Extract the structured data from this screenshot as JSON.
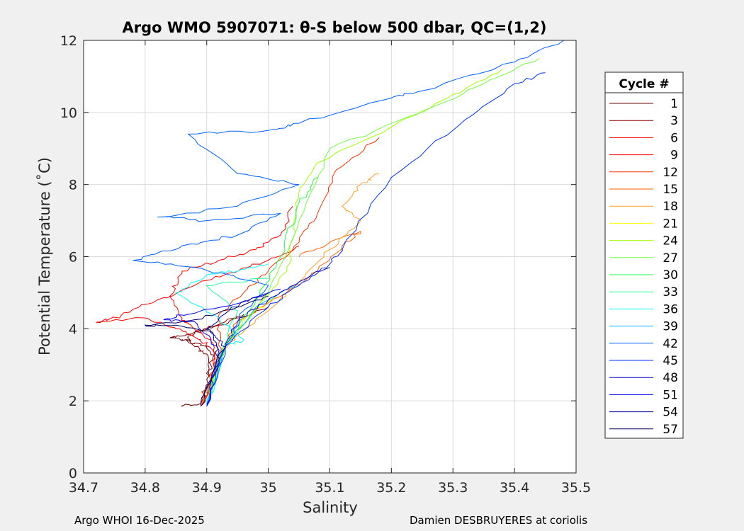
{
  "chart_data": {
    "type": "line",
    "title": "Argo WMO 5907071: θ-S below 500 dbar,  QC=(1,2)",
    "xlabel": "Salinity",
    "ylabel": "Potential Temperature (˚C)",
    "xlim": [
      34.7,
      35.5
    ],
    "ylim": [
      0,
      12
    ],
    "xticks": [
      34.7,
      34.8,
      34.9,
      35,
      35.1,
      35.2,
      35.3,
      35.4,
      35.5
    ],
    "xtick_labels": [
      "34.7",
      "34.8",
      "34.9",
      "35",
      "35.1",
      "35.2",
      "35.3",
      "35.4",
      "35.5"
    ],
    "yticks": [
      0,
      2,
      4,
      6,
      8,
      10,
      12
    ],
    "ytick_labels": [
      "0",
      "2",
      "4",
      "6",
      "8",
      "10",
      "12"
    ],
    "grid": true,
    "legend": {
      "title": "Cycle #",
      "placement": "right-outside"
    },
    "series": [
      {
        "name": "1",
        "color": "#6b0000",
        "points": [
          [
            34.86,
            1.88
          ],
          [
            34.89,
            1.9
          ],
          [
            34.9,
            2.6
          ],
          [
            34.91,
            3.2
          ],
          [
            34.9,
            3.5
          ],
          [
            34.88,
            3.6
          ],
          [
            34.86,
            3.7
          ],
          [
            34.84,
            3.75
          ],
          [
            34.88,
            3.9
          ],
          [
            34.92,
            4.1
          ],
          [
            34.96,
            4.4
          ]
        ]
      },
      {
        "name": "3",
        "color": "#8b0000",
        "points": [
          [
            34.89,
            1.85
          ],
          [
            34.905,
            2.5
          ],
          [
            34.9,
            3.3
          ],
          [
            34.88,
            3.5
          ],
          [
            34.87,
            3.8
          ],
          [
            34.9,
            4.0
          ],
          [
            34.95,
            4.3
          ],
          [
            35.0,
            4.6
          ]
        ]
      },
      {
        "name": "6",
        "color": "#ff0000",
        "points": [
          [
            34.89,
            1.85
          ],
          [
            34.91,
            2.6
          ],
          [
            34.91,
            3.4
          ],
          [
            34.89,
            3.7
          ],
          [
            34.85,
            4.0
          ],
          [
            34.8,
            4.3
          ],
          [
            34.72,
            4.18
          ],
          [
            34.76,
            4.35
          ],
          [
            34.82,
            4.8
          ],
          [
            34.88,
            5.2
          ],
          [
            34.94,
            5.55
          ],
          [
            35.0,
            5.9
          ],
          [
            35.05,
            6.3
          ]
        ]
      },
      {
        "name": "9",
        "color": "#ff0000",
        "points": [
          [
            34.89,
            1.85
          ],
          [
            34.915,
            2.8
          ],
          [
            34.91,
            3.6
          ],
          [
            34.88,
            4.0
          ],
          [
            34.86,
            4.3
          ],
          [
            34.84,
            4.9
          ],
          [
            34.86,
            5.6
          ],
          [
            34.92,
            5.9
          ],
          [
            34.98,
            6.2
          ],
          [
            35.02,
            6.6
          ],
          [
            35.04,
            7.4
          ]
        ]
      },
      {
        "name": "12",
        "color": "#ff3000",
        "points": [
          [
            34.89,
            1.85
          ],
          [
            34.92,
            3.3
          ],
          [
            34.92,
            4.4
          ],
          [
            34.96,
            5.0
          ],
          [
            35.0,
            5.6
          ],
          [
            35.05,
            6.4
          ],
          [
            35.08,
            7.2
          ],
          [
            35.11,
            8.4
          ],
          [
            35.18,
            9.3
          ]
        ]
      },
      {
        "name": "15",
        "color": "#ff6000",
        "points": [
          [
            34.89,
            1.85
          ],
          [
            34.92,
            3.2
          ],
          [
            34.95,
            4.2
          ],
          [
            35.02,
            4.9
          ],
          [
            35.08,
            5.6
          ],
          [
            35.12,
            6.3
          ],
          [
            35.15,
            6.7
          ],
          [
            35.1,
            6.4
          ],
          [
            35.05,
            6.0
          ]
        ]
      },
      {
        "name": "18",
        "color": "#ffa020",
        "points": [
          [
            34.89,
            1.85
          ],
          [
            34.92,
            3.3
          ],
          [
            34.95,
            3.8
          ],
          [
            35.0,
            4.5
          ],
          [
            35.05,
            5.3
          ],
          [
            35.1,
            6.2
          ],
          [
            35.15,
            7.0
          ],
          [
            35.12,
            7.4
          ],
          [
            35.15,
            8.0
          ],
          [
            35.18,
            8.3
          ]
        ]
      },
      {
        "name": "21",
        "color": "#ffff00",
        "points": [
          [
            34.9,
            1.9
          ],
          [
            34.93,
            3.5
          ],
          [
            34.97,
            4.4
          ],
          [
            35.02,
            5.0
          ]
        ]
      },
      {
        "name": "24",
        "color": "#a0ff00",
        "points": [
          [
            34.9,
            1.9
          ],
          [
            34.93,
            3.6
          ],
          [
            34.98,
            4.6
          ],
          [
            35.03,
            5.6
          ],
          [
            35.04,
            6.5
          ],
          [
            35.05,
            7.8
          ],
          [
            35.08,
            8.6
          ],
          [
            35.2,
            9.6
          ],
          [
            35.3,
            10.5
          ],
          [
            35.38,
            11.2
          ]
        ]
      },
      {
        "name": "27",
        "color": "#70ff40",
        "points": [
          [
            34.9,
            1.9
          ],
          [
            34.93,
            3.5
          ],
          [
            35.0,
            5.0
          ],
          [
            35.05,
            7.0
          ],
          [
            35.1,
            9.0
          ],
          [
            35.25,
            10.0
          ],
          [
            35.35,
            10.8
          ],
          [
            35.44,
            11.5
          ]
        ]
      },
      {
        "name": "30",
        "color": "#20ff40",
        "points": [
          [
            34.9,
            1.9
          ],
          [
            34.93,
            3.5
          ],
          [
            34.98,
            4.8
          ],
          [
            35.02,
            6.0
          ],
          [
            35.05,
            7.5
          ],
          [
            35.08,
            8.2
          ]
        ]
      },
      {
        "name": "33",
        "color": "#20ffa0",
        "points": [
          [
            34.9,
            1.9
          ],
          [
            34.93,
            3.6
          ],
          [
            34.95,
            4.5
          ],
          [
            34.9,
            5.2
          ],
          [
            35.0,
            5.4
          ]
        ]
      },
      {
        "name": "36",
        "color": "#00ffff",
        "points": [
          [
            34.9,
            1.9
          ],
          [
            34.93,
            3.5
          ],
          [
            34.96,
            3.7
          ],
          [
            34.92,
            4.3
          ],
          [
            34.85,
            5.0
          ],
          [
            34.9,
            5.5
          ],
          [
            34.95,
            5.6
          ],
          [
            35.0,
            5.8
          ]
        ]
      },
      {
        "name": "39",
        "color": "#00b0ff",
        "points": [
          [
            34.9,
            1.9
          ],
          [
            34.93,
            3.5
          ],
          [
            34.98,
            4.6
          ],
          [
            35.05,
            5.3
          ]
        ]
      },
      {
        "name": "42",
        "color": "#0060ff",
        "points": [
          [
            34.9,
            1.9
          ],
          [
            34.93,
            3.5
          ],
          [
            34.96,
            4.5
          ],
          [
            35.0,
            5.2
          ],
          [
            34.88,
            5.7
          ],
          [
            34.78,
            5.9
          ],
          [
            34.86,
            6.3
          ],
          [
            34.95,
            6.6
          ],
          [
            35.02,
            7.2
          ],
          [
            34.9,
            7.0
          ],
          [
            34.82,
            7.1
          ],
          [
            34.95,
            7.4
          ],
          [
            35.05,
            8.0
          ],
          [
            34.95,
            8.3
          ],
          [
            34.87,
            9.4
          ],
          [
            35.0,
            9.5
          ],
          [
            35.05,
            9.7
          ],
          [
            35.2,
            10.4
          ],
          [
            35.25,
            10.6
          ],
          [
            35.4,
            11.4
          ],
          [
            35.48,
            12.0
          ]
        ]
      },
      {
        "name": "45",
        "color": "#0030ff",
        "points": [
          [
            34.9,
            1.9
          ],
          [
            34.93,
            3.5
          ],
          [
            35.0,
            4.6
          ],
          [
            35.05,
            5.2
          ],
          [
            35.1,
            5.8
          ],
          [
            35.12,
            6.2
          ],
          [
            35.2,
            8.2
          ],
          [
            35.32,
            9.8
          ],
          [
            35.4,
            10.8
          ],
          [
            35.45,
            11.1
          ]
        ]
      },
      {
        "name": "48",
        "color": "#0000d0",
        "points": [
          [
            34.9,
            1.85
          ],
          [
            34.92,
            3.3
          ],
          [
            34.95,
            4.2
          ],
          [
            35.0,
            4.8
          ],
          [
            35.05,
            5.3
          ],
          [
            35.1,
            5.7
          ]
        ]
      },
      {
        "name": "51",
        "color": "#0000ff",
        "points": [
          [
            34.9,
            1.85
          ],
          [
            34.92,
            3.4
          ],
          [
            34.88,
            4.2
          ],
          [
            34.83,
            4.25
          ],
          [
            34.87,
            4.4
          ],
          [
            34.95,
            4.7
          ],
          [
            35.02,
            5.1
          ]
        ]
      },
      {
        "name": "54",
        "color": "#0000a0",
        "points": [
          [
            34.89,
            1.9
          ],
          [
            34.93,
            3.5
          ],
          [
            34.9,
            4.0
          ],
          [
            34.94,
            4.6
          ],
          [
            35.0,
            5.0
          ]
        ]
      },
      {
        "name": "57",
        "color": "#000060",
        "points": [
          [
            34.89,
            1.85
          ],
          [
            34.92,
            3.2
          ],
          [
            34.91,
            3.9
          ],
          [
            34.85,
            4.1
          ],
          [
            34.8,
            4.1
          ],
          [
            34.88,
            4.25
          ],
          [
            34.95,
            4.6
          ],
          [
            35.0,
            4.9
          ]
        ]
      }
    ]
  },
  "footer": {
    "left": "Argo WHOI 16-Dec-2025",
    "right": "Damien DESBRUYERES at coriolis"
  }
}
